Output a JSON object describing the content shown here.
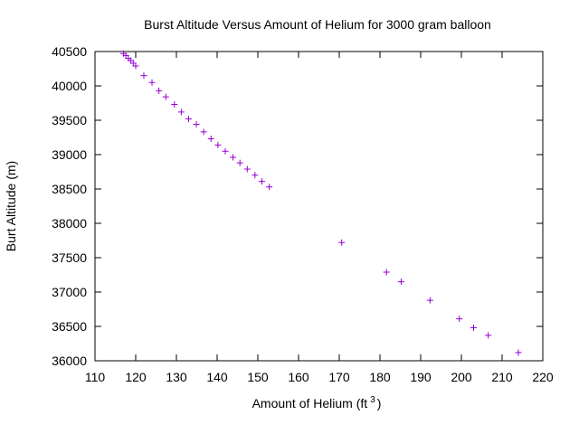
{
  "chart_data": {
    "type": "scatter",
    "title": "Burst Altitude Versus Amount of Helium for 3000 gram balloon",
    "xlabel": "Amount of Helium (ft",
    "xlabel_superscript": "3",
    "xlabel_suffix": ")",
    "ylabel": "Burt Altitude (m)",
    "xlim": [
      110,
      220
    ],
    "ylim": [
      36000,
      40500
    ],
    "x_ticks": [
      110,
      120,
      130,
      140,
      150,
      160,
      170,
      180,
      190,
      200,
      210,
      220
    ],
    "y_ticks": [
      36000,
      36500,
      37000,
      37500,
      38000,
      38500,
      39000,
      39500,
      40000,
      40500
    ],
    "marker": "+",
    "marker_color": "#9400d3",
    "grid": false,
    "series": [
      {
        "points": [
          [
            117.0,
            40470
          ],
          [
            117.6,
            40440
          ],
          [
            118.2,
            40400
          ],
          [
            118.8,
            40370
          ],
          [
            119.4,
            40330
          ],
          [
            120.0,
            40290
          ],
          [
            122.0,
            40150
          ],
          [
            124.0,
            40050
          ],
          [
            125.7,
            39930
          ],
          [
            127.4,
            39840
          ],
          [
            129.5,
            39730
          ],
          [
            131.2,
            39620
          ],
          [
            133.0,
            39520
          ],
          [
            134.9,
            39440
          ],
          [
            136.7,
            39330
          ],
          [
            138.5,
            39230
          ],
          [
            140.2,
            39140
          ],
          [
            142.0,
            39050
          ],
          [
            143.9,
            38960
          ],
          [
            145.6,
            38880
          ],
          [
            147.4,
            38790
          ],
          [
            149.3,
            38700
          ],
          [
            151.0,
            38610
          ],
          [
            152.8,
            38530
          ],
          [
            170.6,
            37720
          ],
          [
            181.6,
            37290
          ],
          [
            185.2,
            37150
          ],
          [
            192.3,
            36880
          ],
          [
            199.5,
            36610
          ],
          [
            203.0,
            36480
          ],
          [
            206.6,
            36370
          ],
          [
            214.0,
            36120
          ]
        ]
      }
    ]
  }
}
